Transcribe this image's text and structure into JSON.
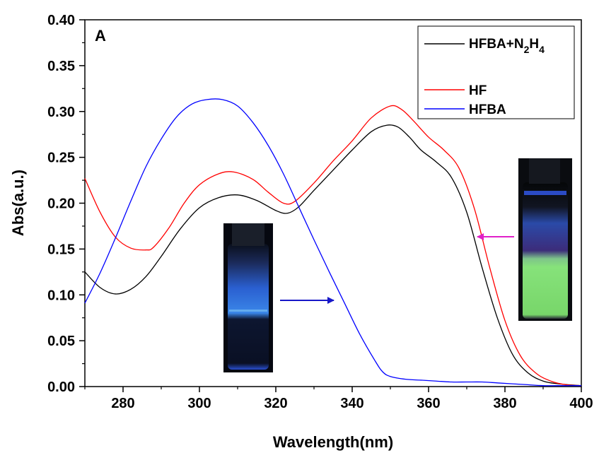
{
  "chart_data": {
    "type": "line",
    "panel_label": "A",
    "xlabel": "Wavelength(nm)",
    "ylabel": "Abs(a.u.)",
    "xlim": [
      270,
      400
    ],
    "ylim": [
      0,
      0.4
    ],
    "xticks": [
      280,
      300,
      320,
      340,
      360,
      380,
      400
    ],
    "yticks": [
      0.0,
      0.05,
      0.1,
      0.15,
      0.2,
      0.25,
      0.3,
      0.35,
      0.4
    ],
    "legend_position": "top-right",
    "series": [
      {
        "name": "HFBA+N2H4",
        "legend_main": "HFBA+N",
        "legend_sub1": "2",
        "legend_mid": "H",
        "legend_sub2": "4",
        "color": "#000000",
        "x": [
          270,
          274,
          278,
          282,
          286,
          290,
          295,
          300,
          305,
          310,
          315,
          320,
          323,
          326,
          330,
          335,
          340,
          345,
          349,
          352,
          355,
          358,
          362,
          366,
          370,
          374,
          378,
          382,
          386,
          390,
          394,
          400
        ],
        "y": [
          0.125,
          0.108,
          0.101,
          0.106,
          0.12,
          0.142,
          0.172,
          0.195,
          0.206,
          0.209,
          0.203,
          0.192,
          0.189,
          0.196,
          0.214,
          0.236,
          0.258,
          0.278,
          0.285,
          0.283,
          0.272,
          0.258,
          0.245,
          0.228,
          0.19,
          0.13,
          0.075,
          0.035,
          0.015,
          0.006,
          0.003,
          0.001
        ]
      },
      {
        "name": "HF",
        "color": "#ff0000",
        "x": [
          270,
          274,
          278,
          282,
          286,
          288,
          292,
          296,
          300,
          305,
          309,
          314,
          318,
          322,
          325,
          330,
          335,
          340,
          345,
          350,
          353,
          356,
          360,
          364,
          368,
          372,
          376,
          380,
          384,
          388,
          392,
          396,
          400
        ],
        "y": [
          0.227,
          0.19,
          0.163,
          0.151,
          0.149,
          0.152,
          0.173,
          0.2,
          0.22,
          0.232,
          0.234,
          0.226,
          0.212,
          0.2,
          0.202,
          0.222,
          0.246,
          0.268,
          0.293,
          0.306,
          0.302,
          0.29,
          0.272,
          0.258,
          0.238,
          0.194,
          0.13,
          0.072,
          0.034,
          0.015,
          0.006,
          0.002,
          0.001
        ]
      },
      {
        "name": "HFBA",
        "color": "#0000ff",
        "x": [
          270,
          274,
          278,
          282,
          286,
          290,
          294,
          298,
          302,
          306,
          310,
          314,
          318,
          322,
          326,
          330,
          334,
          338,
          342,
          346,
          348,
          350,
          354,
          358,
          362,
          366,
          370,
          374,
          378,
          382,
          386,
          390,
          394,
          400
        ],
        "y": [
          0.091,
          0.124,
          0.162,
          0.202,
          0.24,
          0.27,
          0.294,
          0.308,
          0.313,
          0.313,
          0.306,
          0.288,
          0.263,
          0.232,
          0.196,
          0.16,
          0.125,
          0.091,
          0.057,
          0.028,
          0.016,
          0.011,
          0.008,
          0.007,
          0.006,
          0.005,
          0.005,
          0.005,
          0.004,
          0.003,
          0.002,
          0.001,
          0.001,
          0.001
        ]
      }
    ]
  }
}
